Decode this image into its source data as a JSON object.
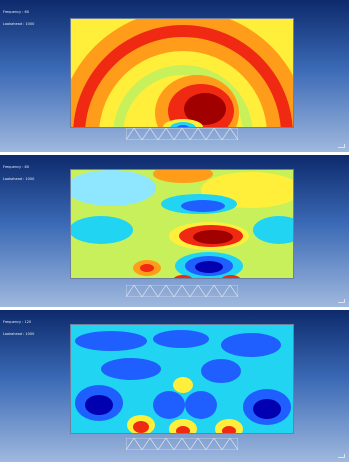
{
  "viewports": [
    {
      "name": "viewport-1",
      "hud": [
        "Frequency : 60",
        "Lookahead : 1000"
      ]
    },
    {
      "name": "viewport-2",
      "hud": [
        "Frequency : 80",
        "Lookahead : 1000"
      ]
    },
    {
      "name": "viewport-3",
      "hud": [
        "Frequency : 120",
        "Lookahead : 1000"
      ]
    }
  ],
  "colormap": {
    "deep_blue": "#0000b0",
    "blue": "#1f5fff",
    "cyan": "#21d4f2",
    "light_cyan": "#8fe6ff",
    "green_yellow": "#c8f05a",
    "yellow": "#ffef3a",
    "orange": "#ff9d1a",
    "red": "#f02a12",
    "dark_red": "#a10000"
  },
  "icons": {
    "truss": "truss-structure-icon",
    "axis": "axis-triad-icon"
  }
}
